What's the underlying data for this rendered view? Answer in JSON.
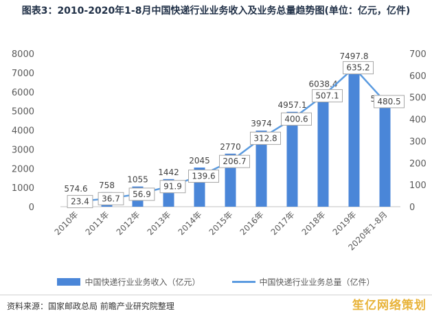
{
  "title": "图表3：2010-2020年1-8月中国快递行业业务收入及业务总量趋势图(单位：亿元，亿件)",
  "chart_data": {
    "type": "bar",
    "categories": [
      "2010年",
      "2011年",
      "2012年",
      "2013年",
      "2014年",
      "2015年",
      "2016年",
      "2017年",
      "2018年",
      "2019年",
      "2020年1-8月"
    ],
    "series": [
      {
        "name": "中国快递行业业务收入（亿元）",
        "type": "bar",
        "axis": "left",
        "values": [
          574.6,
          758,
          1055,
          1442,
          2045,
          2770,
          3974,
          4957.1,
          6038.4,
          7497.8,
          5274.5
        ],
        "labels": [
          "574.6",
          "758",
          "1055",
          "1442",
          "2045",
          "2770",
          "3974",
          "4957.1",
          "6038.4",
          "7497.8",
          "5274.5"
        ]
      },
      {
        "name": "中国快递行业业务总量（亿件）",
        "type": "line",
        "axis": "right",
        "values": [
          23.4,
          36.7,
          56.9,
          91.9,
          139.6,
          206.7,
          312.8,
          400.6,
          507.1,
          635.2,
          480.5
        ],
        "labels": [
          "23.4",
          "36.7",
          "56.9",
          "91.9",
          "139.6",
          "206.7",
          "312.8",
          "400.6",
          "507.1",
          "635.2",
          "480.5"
        ]
      }
    ],
    "y_left": {
      "lim": [
        0,
        8000
      ],
      "ticks": [
        "0",
        "1000",
        "2000",
        "3000",
        "4000",
        "5000",
        "6000",
        "7000",
        "8000"
      ]
    },
    "y_right": {
      "lim": [
        0,
        700
      ],
      "ticks": [
        "0",
        "100",
        "200",
        "300",
        "400",
        "500",
        "600",
        "700"
      ]
    },
    "legend_position": "bottom",
    "grid": false,
    "colors": {
      "bar": "#4a86d8",
      "line": "#5b9be0",
      "label_box_border": "#a6a6a6"
    }
  },
  "source": "资料来源：国家邮政总局 前瞻产业研究院整理",
  "brand": "笙亿网络策划"
}
